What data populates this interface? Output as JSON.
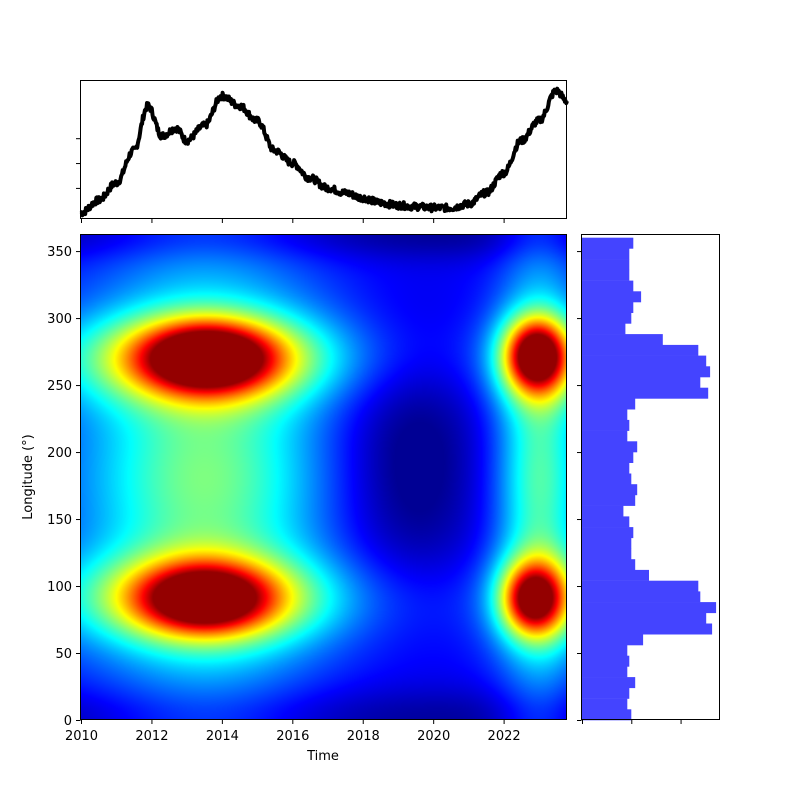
{
  "chart_data": [
    {
      "type": "line",
      "panel": "top",
      "x": [
        2010.0,
        2010.5,
        2011.0,
        2011.5,
        2011.9,
        2012.3,
        2012.7,
        2013.0,
        2013.5,
        2014.0,
        2014.5,
        2015.0,
        2015.5,
        2016.0,
        2016.5,
        2017.0,
        2017.5,
        2018.0,
        2018.5,
        2019.0,
        2019.5,
        2020.0,
        2020.5,
        2021.0,
        2021.5,
        2022.0,
        2022.5,
        2023.0,
        2023.5,
        2023.8
      ],
      "y": [
        0.0,
        0.5,
        1.2,
        2.5,
        4.3,
        3.1,
        3.4,
        2.9,
        3.5,
        4.7,
        4.3,
        3.7,
        2.5,
        2.0,
        1.4,
        1.0,
        0.8,
        0.6,
        0.4,
        0.3,
        0.25,
        0.2,
        0.2,
        0.35,
        0.8,
        1.6,
        2.9,
        3.7,
        4.9,
        4.5
      ],
      "xlim": [
        2010,
        2023.8
      ],
      "tick_labels": false,
      "line_color": "#000000"
    },
    {
      "type": "heatmap",
      "panel": "main",
      "xlabel": "Time",
      "ylabel": "Longitude (°)",
      "xlim": [
        2010,
        2023.8
      ],
      "ylim": [
        0,
        362
      ],
      "x_ticks": [
        "2010",
        "2012",
        "2014",
        "2016",
        "2018",
        "2020",
        "2022"
      ],
      "y_ticks": [
        "0",
        "50",
        "100",
        "150",
        "200",
        "250",
        "300",
        "350"
      ],
      "colormap": "jet",
      "hotspots": [
        {
          "time": 2013.6,
          "longitude": 270,
          "intensity": 0.95
        },
        {
          "time": 2013.5,
          "longitude": 90,
          "intensity": 0.85
        },
        {
          "time": 2022.9,
          "longitude": 272,
          "intensity": 0.8
        },
        {
          "time": 2022.8,
          "longitude": 90,
          "intensity": 0.72
        }
      ]
    },
    {
      "type": "bar",
      "panel": "right",
      "orientation": "horizontal",
      "bin_width": 8,
      "bar_color": "#4444ff",
      "bins": [
        0,
        8,
        16,
        24,
        32,
        40,
        48,
        56,
        64,
        72,
        80,
        88,
        96,
        104,
        112,
        120,
        128,
        136,
        144,
        152,
        160,
        168,
        176,
        184,
        192,
        200,
        208,
        216,
        224,
        232,
        240,
        248,
        256,
        264,
        272,
        280,
        288,
        296,
        304,
        312,
        320,
        328,
        336,
        344,
        352
      ],
      "values": [
        25,
        23,
        24,
        27,
        23,
        24,
        23,
        31,
        66,
        63,
        68,
        60,
        59,
        34,
        27,
        25,
        25,
        26,
        24,
        21,
        27,
        28,
        25,
        24,
        26,
        28,
        23,
        24,
        23,
        27,
        64,
        60,
        65,
        63,
        59,
        41,
        22,
        25,
        26,
        30,
        26,
        24,
        24,
        24,
        26
      ],
      "xlim": [
        0,
        70
      ],
      "tick_labels": false
    }
  ]
}
